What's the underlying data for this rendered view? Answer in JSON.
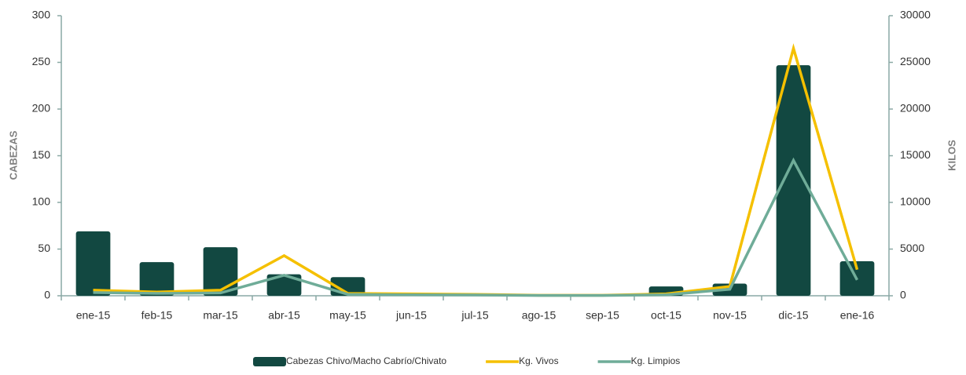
{
  "chart_data": {
    "type": "bar_line",
    "y_label": "CABEZAS",
    "y2_label": "KILOS",
    "categories": [
      "ene-15",
      "feb-15",
      "mar-15",
      "abr-15",
      "may-15",
      "jun-15",
      "jul-15",
      "ago-15",
      "sep-15",
      "oct-15",
      "nov-15",
      "dic-15",
      "ene-16"
    ],
    "series": [
      {
        "name": "Cabezas Chivo/Macho Cabrío/Chivato",
        "color": "#124841",
        "kind": "bar",
        "values": [
          69,
          36,
          52,
          23,
          20,
          0,
          0,
          0,
          0,
          10,
          13,
          247,
          37
        ]
      },
      {
        "name": "Kg. Vivos",
        "color": "#f5c000",
        "kind": "line",
        "axis": "y2",
        "values": [
          600,
          400,
          600,
          4300,
          250,
          200,
          150,
          50,
          50,
          200,
          1000,
          26500,
          2800
        ]
      },
      {
        "name": "Kg. Limpios",
        "color": "#6fac98",
        "kind": "line",
        "axis": "y2",
        "values": [
          350,
          250,
          300,
          2200,
          150,
          100,
          80,
          30,
          30,
          100,
          700,
          14500,
          1700
        ]
      }
    ],
    "ylim": [
      0,
      300
    ],
    "yticks": [
      0,
      50,
      100,
      150,
      200,
      250,
      300
    ],
    "y2lim": [
      0,
      30000
    ],
    "y2ticks": [
      0,
      5000,
      10000,
      15000,
      20000,
      25000,
      30000
    ],
    "grid": false,
    "legend": "bottom"
  }
}
